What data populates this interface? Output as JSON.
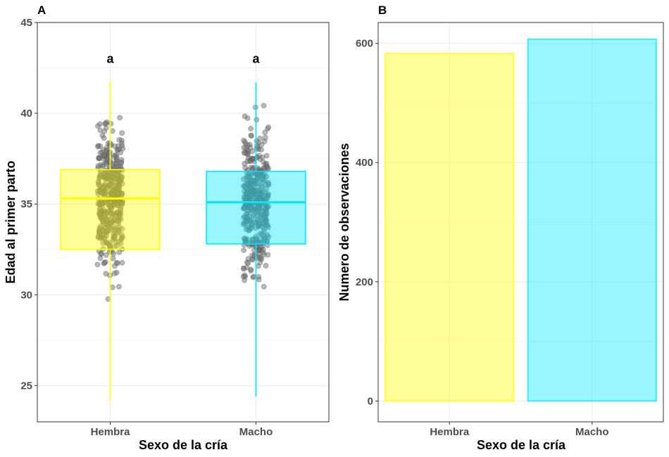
{
  "chart_data": [
    {
      "panel": "A",
      "type": "boxplot",
      "xlabel": "Sexo de la cría",
      "ylabel": "Edad al primer parto",
      "ylim": [
        23,
        45
      ],
      "yticks": [
        25,
        30,
        35,
        40,
        45
      ],
      "grid": true,
      "legend": "none",
      "categories": [
        "Hembra",
        "Macho"
      ],
      "colors": [
        "#ffff00",
        "#00e5ff"
      ],
      "boxes": [
        {
          "category": "Hembra",
          "min": 24.2,
          "q1": 32.5,
          "median": 35.3,
          "q3": 36.9,
          "max": 41.7
        },
        {
          "category": "Macho",
          "min": 24.4,
          "q1": 32.8,
          "median": 35.1,
          "q3": 36.8,
          "max": 41.7
        }
      ],
      "annotations": [
        "a",
        "a"
      ],
      "annotation_y": 43,
      "jitter_points": true,
      "point_color": "#707070"
    },
    {
      "panel": "B",
      "type": "bar",
      "xlabel": "Sexo de la cría",
      "ylabel": "Numero de observaciones",
      "ylim": [
        -35,
        635
      ],
      "yticks": [
        0,
        200,
        400,
        600
      ],
      "grid": true,
      "legend": "none",
      "categories": [
        "Hembra",
        "Macho"
      ],
      "values": [
        583,
        607
      ],
      "colors": [
        "#ffff00",
        "#00e5ff"
      ]
    }
  ]
}
